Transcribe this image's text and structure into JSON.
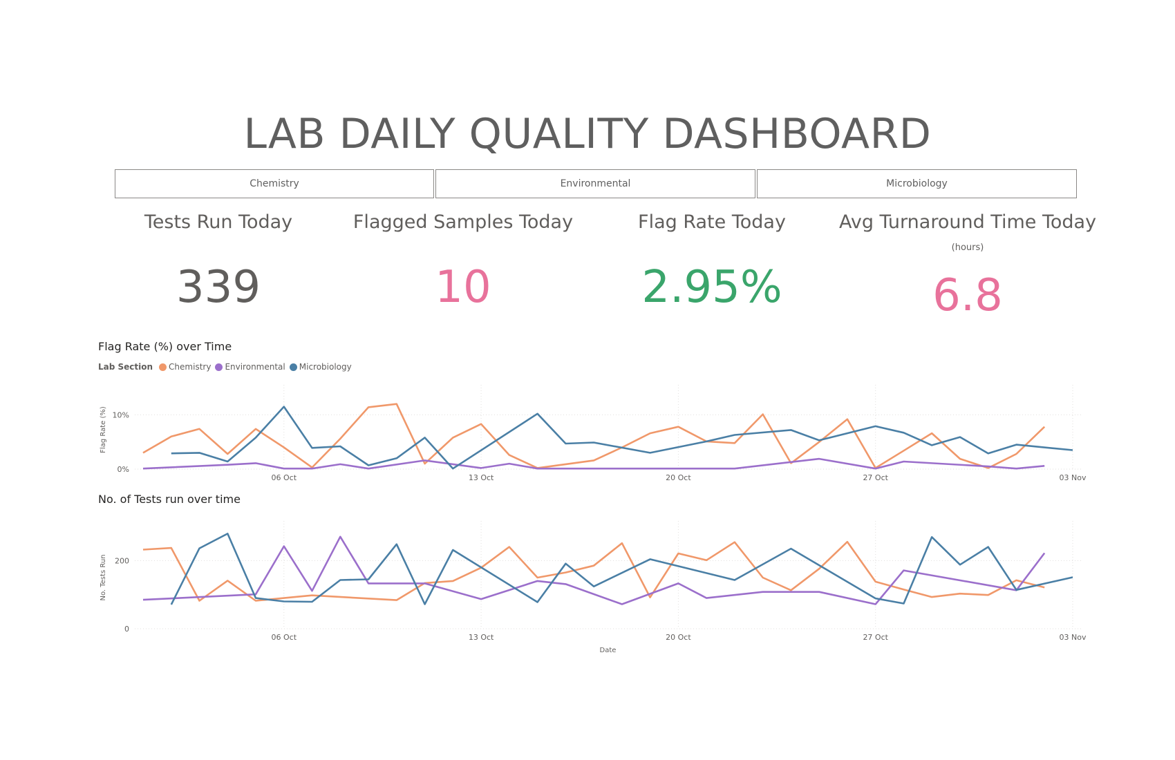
{
  "title": "LAB DAILY QUALITY DASHBOARD",
  "slicers": [
    "Chemistry",
    "Environmental",
    "Microbiology"
  ],
  "kpis": [
    {
      "label": "Tests Run Today",
      "value": "339",
      "sub": "",
      "color": "#605e5c"
    },
    {
      "label": "Flagged Samples Today",
      "value": "10",
      "sub": "",
      "color": "#e8729b"
    },
    {
      "label": "Flag Rate Today",
      "value": "2.95%",
      "sub": "",
      "color": "#3aa56b"
    },
    {
      "label": "Avg Turnaround Time Today",
      "value": "6.8",
      "sub": "(hours)",
      "color": "#e8729b"
    }
  ],
  "legend": {
    "title": "Lab Section"
  },
  "colors": {
    "Chemistry": "#f0986a",
    "Environmental": "#9b6fcb",
    "Microbiology": "#4a7fa5"
  },
  "chart_data": [
    {
      "type": "line",
      "title": "Flag Rate (%) over Time",
      "xlabel": "",
      "ylabel": "Flag Rate (%)",
      "x_start": "2023-10-01",
      "x_end": "2023-11-03",
      "x_ticks": [
        "06 Oct",
        "13 Oct",
        "20 Oct",
        "27 Oct",
        "03 Nov"
      ],
      "x_tick_dates": [
        "2023-10-06",
        "2023-10-13",
        "2023-10-20",
        "2023-10-27",
        "2023-11-03"
      ],
      "y_ticks": [
        "0%",
        "10%"
      ],
      "y_tick_values": [
        0,
        10
      ],
      "ylim": [
        0,
        14.5
      ],
      "series": [
        {
          "name": "Chemistry",
          "points": [
            [
              "2023-10-01",
              3.0
            ],
            [
              "2023-10-02",
              6.0
            ],
            [
              "2023-10-03",
              7.4
            ],
            [
              "2023-10-04",
              2.8
            ],
            [
              "2023-10-05",
              7.4
            ],
            [
              "2023-10-06",
              4.0
            ],
            [
              "2023-10-07",
              0.3
            ],
            [
              "2023-10-08",
              5.6
            ],
            [
              "2023-10-09",
              11.4
            ],
            [
              "2023-10-10",
              12.0
            ],
            [
              "2023-10-11",
              1.0
            ],
            [
              "2023-10-12",
              5.8
            ],
            [
              "2023-10-13",
              8.3
            ],
            [
              "2023-10-14",
              2.6
            ],
            [
              "2023-10-15",
              0.2
            ],
            [
              "2023-10-16",
              0.9
            ],
            [
              "2023-10-17",
              1.6
            ],
            [
              "2023-10-18",
              4.0
            ],
            [
              "2023-10-19",
              6.6
            ],
            [
              "2023-10-20",
              7.8
            ],
            [
              "2023-10-21",
              5.1
            ],
            [
              "2023-10-22",
              4.8
            ],
            [
              "2023-10-23",
              10.1
            ],
            [
              "2023-10-24",
              1.1
            ],
            [
              "2023-10-25",
              5.0
            ],
            [
              "2023-10-26",
              9.2
            ],
            [
              "2023-10-27",
              0.2
            ],
            [
              "2023-10-28",
              3.4
            ],
            [
              "2023-10-29",
              6.6
            ],
            [
              "2023-10-30",
              1.9
            ],
            [
              "2023-10-31",
              0.2
            ],
            [
              "2023-11-01",
              2.8
            ],
            [
              "2023-11-02",
              7.8
            ]
          ]
        },
        {
          "name": "Environmental",
          "points": [
            [
              "2023-10-01",
              0.1
            ],
            [
              "2023-10-04",
              0.8
            ],
            [
              "2023-10-05",
              1.1
            ],
            [
              "2023-10-06",
              0.1
            ],
            [
              "2023-10-07",
              0.1
            ],
            [
              "2023-10-08",
              0.9
            ],
            [
              "2023-10-09",
              0.1
            ],
            [
              "2023-10-11",
              1.6
            ],
            [
              "2023-10-12",
              0.9
            ],
            [
              "2023-10-13",
              0.2
            ],
            [
              "2023-10-14",
              1.0
            ],
            [
              "2023-10-15",
              0.1
            ],
            [
              "2023-10-22",
              0.1
            ],
            [
              "2023-10-25",
              1.9
            ],
            [
              "2023-10-27",
              0.1
            ],
            [
              "2023-10-28",
              1.4
            ],
            [
              "2023-10-31",
              0.5
            ],
            [
              "2023-11-01",
              0.1
            ],
            [
              "2023-11-02",
              0.6
            ]
          ]
        },
        {
          "name": "Microbiology",
          "points": [
            [
              "2023-10-02",
              2.9
            ],
            [
              "2023-10-03",
              3.0
            ],
            [
              "2023-10-04",
              1.4
            ],
            [
              "2023-10-05",
              5.8
            ],
            [
              "2023-10-06",
              11.5
            ],
            [
              "2023-10-07",
              3.9
            ],
            [
              "2023-10-08",
              4.2
            ],
            [
              "2023-10-09",
              0.7
            ],
            [
              "2023-10-10",
              2.0
            ],
            [
              "2023-10-11",
              5.8
            ],
            [
              "2023-10-12",
              0.1
            ],
            [
              "2023-10-15",
              10.2
            ],
            [
              "2023-10-16",
              4.7
            ],
            [
              "2023-10-17",
              4.9
            ],
            [
              "2023-10-19",
              3.0
            ],
            [
              "2023-10-21",
              5.1
            ],
            [
              "2023-10-22",
              6.3
            ],
            [
              "2023-10-24",
              7.2
            ],
            [
              "2023-10-25",
              5.3
            ],
            [
              "2023-10-27",
              7.9
            ],
            [
              "2023-10-28",
              6.7
            ],
            [
              "2023-10-29",
              4.4
            ],
            [
              "2023-10-30",
              5.9
            ],
            [
              "2023-10-31",
              2.9
            ],
            [
              "2023-11-01",
              4.5
            ],
            [
              "2023-11-03",
              3.5
            ]
          ]
        }
      ]
    },
    {
      "type": "line",
      "title": "No. of Tests run over time",
      "xlabel": "Date",
      "ylabel": "No. Tests Run",
      "x_start": "2023-10-01",
      "x_end": "2023-11-03",
      "x_ticks": [
        "06 Oct",
        "13 Oct",
        "20 Oct",
        "27 Oct",
        "03 Nov"
      ],
      "x_tick_dates": [
        "2023-10-06",
        "2023-10-13",
        "2023-10-20",
        "2023-10-27",
        "2023-11-03"
      ],
      "y_ticks": [
        "0",
        "200"
      ],
      "y_tick_values": [
        0,
        200
      ],
      "ylim": [
        0,
        300
      ],
      "series": [
        {
          "name": "Chemistry",
          "points": [
            [
              "2023-10-01",
              232
            ],
            [
              "2023-10-02",
              237
            ],
            [
              "2023-10-03",
              82
            ],
            [
              "2023-10-04",
              141
            ],
            [
              "2023-10-05",
              82
            ],
            [
              "2023-10-06",
              90
            ],
            [
              "2023-10-07",
              98
            ],
            [
              "2023-10-10",
              84
            ],
            [
              "2023-10-11",
              134
            ],
            [
              "2023-10-12",
              140
            ],
            [
              "2023-10-13",
              179
            ],
            [
              "2023-10-14",
              240
            ],
            [
              "2023-10-15",
              150
            ],
            [
              "2023-10-16",
              165
            ],
            [
              "2023-10-17",
              185
            ],
            [
              "2023-10-18",
              251
            ],
            [
              "2023-10-19",
              92
            ],
            [
              "2023-10-20",
              221
            ],
            [
              "2023-10-21",
              201
            ],
            [
              "2023-10-22",
              254
            ],
            [
              "2023-10-23",
              150
            ],
            [
              "2023-10-24",
              113
            ],
            [
              "2023-10-25",
              176
            ],
            [
              "2023-10-26",
              255
            ],
            [
              "2023-10-27",
              138
            ],
            [
              "2023-10-28",
              115
            ],
            [
              "2023-10-29",
              93
            ],
            [
              "2023-10-30",
              103
            ],
            [
              "2023-10-31",
              99
            ],
            [
              "2023-11-01",
              142
            ],
            [
              "2023-11-02",
              121
            ]
          ]
        },
        {
          "name": "Environmental",
          "points": [
            [
              "2023-10-01",
              85
            ],
            [
              "2023-10-05",
              101
            ],
            [
              "2023-10-06",
              242
            ],
            [
              "2023-10-07",
              111
            ],
            [
              "2023-10-08",
              270
            ],
            [
              "2023-10-09",
              133
            ],
            [
              "2023-10-11",
              133
            ],
            [
              "2023-10-13",
              87
            ],
            [
              "2023-10-15",
              140
            ],
            [
              "2023-10-16",
              131
            ],
            [
              "2023-10-18",
              72
            ],
            [
              "2023-10-20",
              133
            ],
            [
              "2023-10-21",
              90
            ],
            [
              "2023-10-23",
              108
            ],
            [
              "2023-10-25",
              108
            ],
            [
              "2023-10-27",
              72
            ],
            [
              "2023-10-28",
              171
            ],
            [
              "2023-11-01",
              113
            ],
            [
              "2023-11-02",
              222
            ]
          ]
        },
        {
          "name": "Microbiology",
          "points": [
            [
              "2023-10-02",
              71
            ],
            [
              "2023-10-03",
              236
            ],
            [
              "2023-10-04",
              279
            ],
            [
              "2023-10-05",
              90
            ],
            [
              "2023-10-06",
              80
            ],
            [
              "2023-10-07",
              79
            ],
            [
              "2023-10-08",
              143
            ],
            [
              "2023-10-09",
              145
            ],
            [
              "2023-10-10",
              248
            ],
            [
              "2023-10-11",
              72
            ],
            [
              "2023-10-12",
              231
            ],
            [
              "2023-10-15",
              78
            ],
            [
              "2023-10-16",
              191
            ],
            [
              "2023-10-17",
              124
            ],
            [
              "2023-10-19",
              204
            ],
            [
              "2023-10-22",
              143
            ],
            [
              "2023-10-24",
              235
            ],
            [
              "2023-10-27",
              89
            ],
            [
              "2023-10-28",
              74
            ],
            [
              "2023-10-29",
              269
            ],
            [
              "2023-10-30",
              188
            ],
            [
              "2023-10-31",
              240
            ],
            [
              "2023-11-01",
              114
            ],
            [
              "2023-11-03",
              151
            ]
          ]
        }
      ]
    }
  ]
}
